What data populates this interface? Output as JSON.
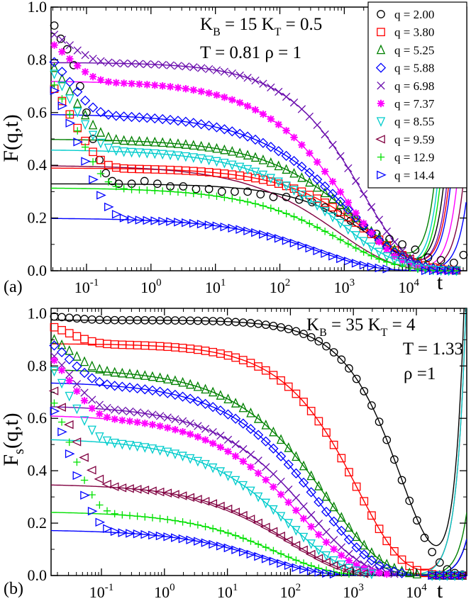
{
  "chart_data": [
    {
      "type": "scatter",
      "panel_label": "(a)",
      "xscale": "log",
      "xlim_log10": [
        -1.55,
        4.9
      ],
      "ylim": [
        0,
        1
      ],
      "xlabel": "t",
      "ylabel": "F(q,t)",
      "x_ticks": [
        {
          "exp": "-1"
        },
        {
          "exp": "0"
        },
        {
          "exp": "1"
        },
        {
          "exp": "2"
        },
        {
          "exp": "3"
        },
        {
          "exp": "4"
        }
      ],
      "y_ticks": [
        "0.0",
        "0.2",
        "0.4",
        "0.6",
        "0.8",
        "1.0"
      ],
      "annotation": {
        "line1": "K_B = 15   K_T =  0.5",
        "line2": "T = 0.81   ρ = 1"
      },
      "legend": [
        "q = 2.00",
        "q = 3.80",
        "q = 5.25",
        "q = 5.88",
        "q = 6.98",
        "q = 7.37",
        "q = 8.55",
        "q = 9.59",
        "q = 12.9",
        "q = 14.4"
      ],
      "series": [
        {
          "name": "q = 2.00",
          "marker": "circle",
          "color": "#000000",
          "plateau": 0.33,
          "tau": 3000,
          "beta": 0.6,
          "up": 25000,
          "start": 0.93,
          "pt": [
            0.07,
            0.25,
            0.45,
            0.17
          ],
          "pts": [
            [
              -1.5,
              0.93
            ],
            [
              -1.4,
              0.88
            ],
            [
              -1.3,
              0.84
            ],
            [
              -1.2,
              0.78
            ],
            [
              -1.1,
              0.7
            ],
            [
              -1.0,
              0.6
            ],
            [
              -0.9,
              0.5
            ],
            [
              -0.8,
              0.42
            ],
            [
              -0.7,
              0.37
            ],
            [
              -0.6,
              0.34
            ],
            [
              -0.5,
              0.33
            ],
            [
              -0.3,
              0.33
            ],
            [
              -0.1,
              0.34
            ],
            [
              0.1,
              0.33
            ],
            [
              0.3,
              0.32
            ],
            [
              0.5,
              0.32
            ],
            [
              0.7,
              0.31
            ],
            [
              0.9,
              0.31
            ],
            [
              1.1,
              0.3
            ],
            [
              1.3,
              0.3
            ],
            [
              1.5,
              0.3
            ],
            [
              1.7,
              0.29
            ],
            [
              1.9,
              0.28
            ],
            [
              2.1,
              0.28
            ],
            [
              2.3,
              0.27
            ],
            [
              2.5,
              0.26
            ],
            [
              2.7,
              0.24
            ],
            [
              2.9,
              0.22
            ],
            [
              3.1,
              0.19
            ],
            [
              3.3,
              0.17
            ],
            [
              3.5,
              0.14
            ],
            [
              3.7,
              0.12
            ],
            [
              3.9,
              0.1
            ],
            [
              4.1,
              0.08
            ],
            [
              4.3,
              0.05
            ],
            [
              4.5,
              0.04
            ],
            [
              4.7,
              0.03
            ],
            [
              4.85,
              0.06
            ]
          ]
        },
        {
          "name": "q = 3.80",
          "marker": "square",
          "color": "#ff0000",
          "plateau": 0.39,
          "tau": 2500,
          "beta": 0.55,
          "up": 30000,
          "start": 0.9,
          "pt": [
            0.06,
            0.4,
            0.45,
            0.22
          ]
        },
        {
          "name": "q = 5.25",
          "marker": "triangle-up",
          "color": "#008000",
          "plateau": 0.5,
          "tau": 1800,
          "beta": 0.5,
          "up": 18000,
          "start": 0.96,
          "pt": [
            0.06,
            0.35,
            0.5,
            0.12
          ]
        },
        {
          "name": "q = 5.88",
          "marker": "diamond",
          "color": "#0000ff",
          "plateau": 0.595,
          "tau": 1300,
          "beta": 0.5,
          "up": 32000,
          "start": 0.97,
          "pt": [
            0.05,
            0.55,
            0.55,
            0.12
          ]
        },
        {
          "name": "q = 6.98",
          "marker": "x",
          "color": "#6a0dad",
          "plateau": 0.79,
          "tau": 2000,
          "beta": 0.62,
          "up": 28000,
          "start": 0.99,
          "pt": [
            0.05,
            0.9,
            0.5,
            0.16
          ]
        },
        {
          "name": "q = 7.37",
          "marker": "star",
          "color": "#ff00ff",
          "plateau": 0.72,
          "tau": 1100,
          "beta": 0.55,
          "up": 40000,
          "start": 0.98,
          "pt": [
            0.05,
            0.75,
            0.5,
            0.15
          ]
        },
        {
          "name": "q = 8.55",
          "marker": "triangle-down",
          "color": "#00cccc",
          "plateau": 0.46,
          "tau": 1000,
          "beta": 0.5,
          "up": 20000,
          "start": 0.95,
          "pt": [
            0.06,
            0.45,
            0.5,
            0.1
          ]
        },
        {
          "name": "q = 9.59",
          "marker": "triangle-left",
          "color": "#800040",
          "plateau": 0.4,
          "tau": 800,
          "beta": 0.5,
          "up": 50000,
          "start": 0.95,
          "pt": [
            0.06,
            0.4,
            0.5,
            0.1
          ],
          "hidden_in_plot": true
        },
        {
          "name": "q = 12.9",
          "marker": "plus",
          "color": "#00e000",
          "plateau": 0.315,
          "tau": 900,
          "beta": 0.5,
          "up": 22000,
          "start": 0.93,
          "pt": [
            0.07,
            0.3,
            0.5,
            0.1
          ]
        },
        {
          "name": "q = 14.4",
          "marker": "triangle-right",
          "color": "#0000ff",
          "plateau": 0.2,
          "tau": 400,
          "beta": 0.5,
          "up": 60000,
          "start": 0.92,
          "pt": [
            0.08,
            0.2,
            0.5,
            0.08
          ]
        }
      ]
    },
    {
      "type": "scatter",
      "panel_label": "(b)",
      "xscale": "log",
      "xlim_log10": [
        -1.8,
        4.8
      ],
      "ylim": [
        0,
        1.02
      ],
      "xlabel": "t",
      "ylabel": "F_s(q,t)",
      "x_ticks": [
        {
          "exp": "-1"
        },
        {
          "exp": "0"
        },
        {
          "exp": "1"
        },
        {
          "exp": "2"
        },
        {
          "exp": "3"
        },
        {
          "exp": "4"
        }
      ],
      "y_ticks": [
        "0.0",
        "0.2",
        "0.4",
        "0.6",
        "0.8",
        "1.0"
      ],
      "annotation": {
        "line1": "K_B = 35  K_T =  4",
        "line2": "T = 1.33",
        "line3": "ρ =1"
      },
      "series": [
        {
          "name": "q = 2.00",
          "marker": "circle",
          "color": "#000000",
          "plateau": 0.975,
          "tau": 6000,
          "beta": 0.8,
          "up": 28000,
          "start": 1.0,
          "pt": [
            0.03,
            0.5,
            0.02,
            0.02
          ]
        },
        {
          "name": "q = 3.80",
          "marker": "square",
          "color": "#ff0000",
          "plateau": 0.885,
          "tau": 1200,
          "beta": 0.62,
          "up": 30000,
          "start": 1.0,
          "pt": [
            0.03,
            0.1,
            0.1,
            0.04
          ]
        },
        {
          "name": "q = 5.25",
          "marker": "triangle-up",
          "color": "#008000",
          "plateau": 0.79,
          "tau": 400,
          "beta": 0.5,
          "up": 50000,
          "start": 1.0,
          "pt": [
            0.03,
            0.08,
            0.15,
            0.05
          ]
        },
        {
          "name": "q = 5.88",
          "marker": "diamond",
          "color": "#0000ff",
          "plateau": 0.74,
          "tau": 300,
          "beta": 0.5,
          "up": 60000,
          "start": 1.0,
          "pt": [
            0.03,
            0.06,
            0.2,
            0.05
          ]
        },
        {
          "name": "q = 6.98",
          "marker": "x",
          "color": "#6a0dad",
          "plateau": 0.65,
          "tau": 200,
          "beta": 0.5,
          "up": 60000,
          "start": 1.0,
          "pt": [
            0.03,
            0.05,
            0.25,
            0.05
          ]
        },
        {
          "name": "q = 7.37",
          "marker": "star",
          "color": "#ff00ff",
          "plateau": 0.615,
          "tau": 150,
          "beta": 0.5,
          "up": 60000,
          "start": 1.0,
          "pt": [
            0.03,
            0.05,
            0.3,
            0.05
          ]
        },
        {
          "name": "q = 8.55",
          "marker": "triangle-down",
          "color": "#00cccc",
          "plateau": 0.525,
          "tau": 100,
          "beta": 0.5,
          "up": 30000,
          "start": 1.0,
          "pt": [
            0.03,
            0.04,
            0.35,
            0.05
          ]
        },
        {
          "name": "q = 9.59",
          "marker": "triangle-left",
          "color": "#800040",
          "plateau": 0.35,
          "tau": 100,
          "beta": 0.5,
          "up": 60000,
          "start": 1.0,
          "pt": [
            0.03,
            0.03,
            0.45,
            0.05
          ]
        },
        {
          "name": "q = 12.9",
          "marker": "plus",
          "color": "#00e000",
          "plateau": 0.245,
          "tau": 60,
          "beta": 0.5,
          "up": 60000,
          "start": 1.0,
          "pt": [
            0.03,
            0.025,
            0.5,
            0.05
          ]
        },
        {
          "name": "q = 14.4",
          "marker": "triangle-right",
          "color": "#0000ff",
          "plateau": 0.175,
          "tau": 40,
          "beta": 0.5,
          "up": 60000,
          "start": 1.0,
          "pt": [
            0.03,
            0.02,
            0.55,
            0.05
          ]
        }
      ]
    }
  ]
}
